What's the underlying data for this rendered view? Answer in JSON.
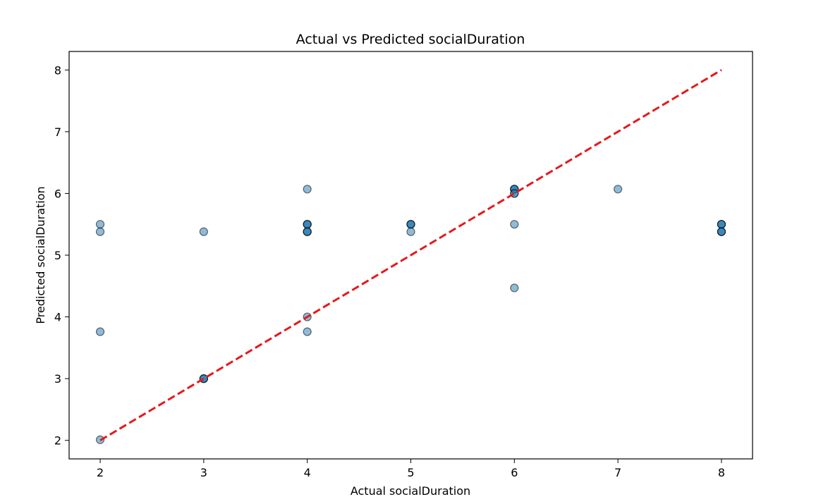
{
  "chart_data": {
    "type": "scatter",
    "title": "Actual vs Predicted socialDuration",
    "xlabel": "Actual socialDuration",
    "ylabel": "Predicted socialDuration",
    "xlim": [
      1.7,
      8.3
    ],
    "ylim": [
      1.7,
      8.3
    ],
    "xticks": [
      2,
      3,
      4,
      5,
      6,
      7,
      8
    ],
    "yticks": [
      2,
      3,
      4,
      5,
      6,
      7,
      8
    ],
    "grid": false,
    "points": [
      {
        "x": 2,
        "y": 5.5
      },
      {
        "x": 2,
        "y": 5.38
      },
      {
        "x": 2,
        "y": 3.76
      },
      {
        "x": 2,
        "y": 2.01
      },
      {
        "x": 3,
        "y": 5.38
      },
      {
        "x": 3,
        "y": 3.0
      },
      {
        "x": 3,
        "y": 3.0
      },
      {
        "x": 3,
        "y": 3.0
      },
      {
        "x": 4,
        "y": 6.07
      },
      {
        "x": 4,
        "y": 5.5
      },
      {
        "x": 4,
        "y": 5.5
      },
      {
        "x": 4,
        "y": 5.5
      },
      {
        "x": 4,
        "y": 5.38
      },
      {
        "x": 4,
        "y": 5.38
      },
      {
        "x": 4,
        "y": 5.38
      },
      {
        "x": 4,
        "y": 4.0
      },
      {
        "x": 4,
        "y": 3.76
      },
      {
        "x": 5,
        "y": 5.5
      },
      {
        "x": 5,
        "y": 5.5
      },
      {
        "x": 5,
        "y": 5.5
      },
      {
        "x": 5,
        "y": 5.38
      },
      {
        "x": 6,
        "y": 6.07
      },
      {
        "x": 6,
        "y": 6.07
      },
      {
        "x": 6,
        "y": 6.07
      },
      {
        "x": 6,
        "y": 6.0
      },
      {
        "x": 6,
        "y": 6.0
      },
      {
        "x": 6,
        "y": 5.5
      },
      {
        "x": 6,
        "y": 4.47
      },
      {
        "x": 7,
        "y": 6.07
      },
      {
        "x": 8,
        "y": 5.5
      },
      {
        "x": 8,
        "y": 5.5
      },
      {
        "x": 8,
        "y": 5.5
      },
      {
        "x": 8,
        "y": 5.38
      },
      {
        "x": 8,
        "y": 5.38
      },
      {
        "x": 8,
        "y": 5.38
      }
    ],
    "reference_line": {
      "x": [
        2,
        8
      ],
      "y": [
        2,
        8
      ],
      "style": "dashed",
      "color": "#e41a1c"
    },
    "point_color": "#1f77b4",
    "point_alpha": 0.5,
    "point_edge_color": "#000000"
  }
}
